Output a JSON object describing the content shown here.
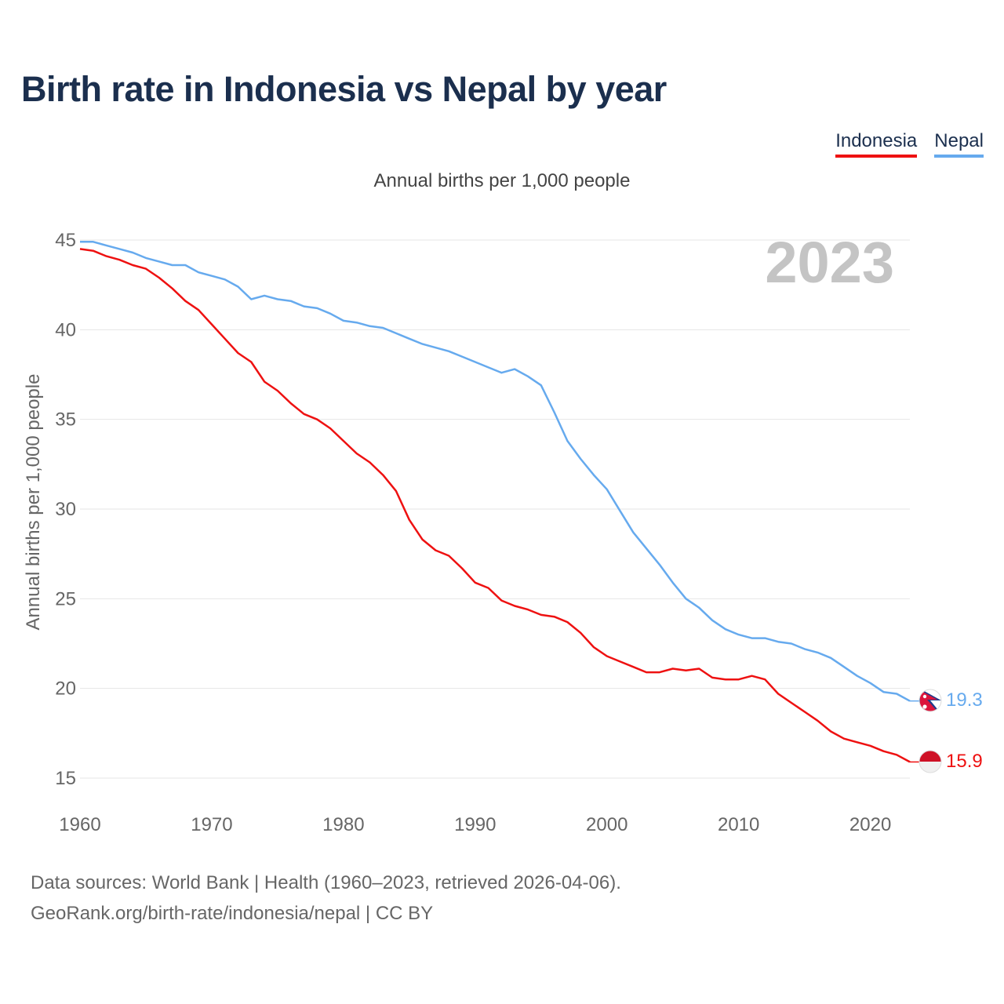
{
  "title": "Birth rate in Indonesia vs Nepal by year",
  "subtitle": "Annual births per 1,000 people",
  "year_watermark": "2023",
  "legend": [
    {
      "label": "Indonesia",
      "color": "#ee1111"
    },
    {
      "label": "Nepal",
      "color": "#66aaee"
    }
  ],
  "source": {
    "line1": "Data sources: World Bank | Health (1960–2023, retrieved 2026-04-06).",
    "line2": "GeoRank.org/birth-rate/indonesia/nepal | CC BY"
  },
  "colors": {
    "text_dark": "#1b2f4e",
    "grid": "#e6e6e6",
    "axis_text": "#666666",
    "watermark": "#c4c4c4"
  },
  "chart_data": {
    "type": "line",
    "title": "Birth rate in Indonesia vs Nepal by year",
    "xlabel": "",
    "ylabel": "Annual births per 1,000 people",
    "xlim": [
      1960,
      2023
    ],
    "ylim": [
      15,
      45
    ],
    "x_ticks": [
      1960,
      1970,
      1980,
      1990,
      2000,
      2010,
      2020
    ],
    "y_ticks": [
      15,
      20,
      25,
      30,
      35,
      40,
      45
    ],
    "grid": true,
    "legend_position": "top-right",
    "x": [
      1960,
      1961,
      1962,
      1963,
      1964,
      1965,
      1966,
      1967,
      1968,
      1969,
      1970,
      1971,
      1972,
      1973,
      1974,
      1975,
      1976,
      1977,
      1978,
      1979,
      1980,
      1981,
      1982,
      1983,
      1984,
      1985,
      1986,
      1987,
      1988,
      1989,
      1990,
      1991,
      1992,
      1993,
      1994,
      1995,
      1996,
      1997,
      1998,
      1999,
      2000,
      2001,
      2002,
      2003,
      2004,
      2005,
      2006,
      2007,
      2008,
      2009,
      2010,
      2011,
      2012,
      2013,
      2014,
      2015,
      2016,
      2017,
      2018,
      2019,
      2020,
      2021,
      2022,
      2023
    ],
    "series": [
      {
        "name": "Indonesia",
        "color": "#ee1111",
        "end_label": "15.9",
        "values": [
          44.5,
          44.4,
          44.1,
          43.9,
          43.6,
          43.4,
          42.9,
          42.3,
          41.6,
          41.1,
          40.3,
          39.5,
          38.7,
          38.2,
          37.1,
          36.6,
          35.9,
          35.3,
          35.0,
          34.5,
          33.8,
          33.1,
          32.6,
          31.9,
          31.0,
          29.4,
          28.3,
          27.7,
          27.4,
          26.7,
          25.9,
          25.6,
          24.9,
          24.6,
          24.4,
          24.1,
          24.0,
          23.7,
          23.1,
          22.3,
          21.8,
          21.5,
          21.2,
          20.9,
          20.9,
          21.1,
          21.0,
          21.1,
          20.6,
          20.5,
          20.5,
          20.7,
          20.5,
          19.7,
          19.2,
          18.7,
          18.2,
          17.6,
          17.2,
          17.0,
          16.8,
          16.5,
          16.3,
          15.9
        ]
      },
      {
        "name": "Nepal",
        "color": "#66aaee",
        "end_label": "19.3",
        "values": [
          44.9,
          44.9,
          44.7,
          44.5,
          44.3,
          44.0,
          43.8,
          43.6,
          43.6,
          43.2,
          43.0,
          42.8,
          42.4,
          41.7,
          41.9,
          41.7,
          41.6,
          41.3,
          41.2,
          40.9,
          40.5,
          40.4,
          40.2,
          40.1,
          39.8,
          39.5,
          39.2,
          39.0,
          38.8,
          38.5,
          38.2,
          37.9,
          37.6,
          37.8,
          37.4,
          36.9,
          35.4,
          33.8,
          32.8,
          31.9,
          31.1,
          29.9,
          28.7,
          27.8,
          26.9,
          25.9,
          25.0,
          24.5,
          23.8,
          23.3,
          23.0,
          22.8,
          22.8,
          22.6,
          22.5,
          22.2,
          22.0,
          21.7,
          21.2,
          20.7,
          20.3,
          19.8,
          19.7,
          19.3
        ]
      }
    ]
  }
}
